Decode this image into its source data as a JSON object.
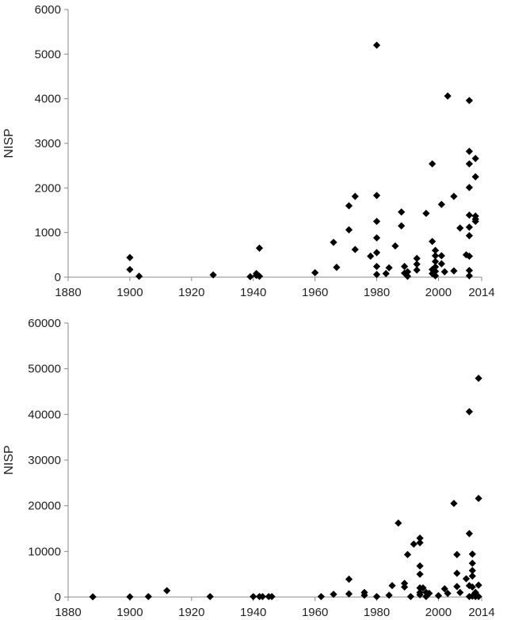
{
  "chart_data": [
    {
      "type": "scatter",
      "title": "",
      "xlabel": "",
      "ylabel": "NISP",
      "xlim": [
        1880,
        2014
      ],
      "ylim": [
        0,
        6000
      ],
      "x_ticks": [
        "1880",
        "1900",
        "1920",
        "1940",
        "1960",
        "1980",
        "2000",
        "2014"
      ],
      "y_ticks": [
        "0",
        "1000",
        "2000",
        "3000",
        "4000",
        "5000",
        "6000"
      ],
      "marker": "diamond",
      "marker_color": "#000000",
      "grid": false,
      "legend": "none",
      "series": [
        {
          "points": [
            [
              1900,
              440
            ],
            [
              1900,
              170
            ],
            [
              1903,
              20
            ],
            [
              1927,
              50
            ],
            [
              1939,
              10
            ],
            [
              1941,
              40
            ],
            [
              1941,
              80
            ],
            [
              1942,
              20
            ],
            [
              1942,
              650
            ],
            [
              1960,
              100
            ],
            [
              1966,
              780
            ],
            [
              1967,
              220
            ],
            [
              1971,
              1600
            ],
            [
              1971,
              1060
            ],
            [
              1973,
              1810
            ],
            [
              1973,
              620
            ],
            [
              1978,
              470
            ],
            [
              1980,
              5200
            ],
            [
              1980,
              1830
            ],
            [
              1980,
              1250
            ],
            [
              1980,
              880
            ],
            [
              1980,
              550
            ],
            [
              1980,
              240
            ],
            [
              1980,
              60
            ],
            [
              1983,
              80
            ],
            [
              1984,
              210
            ],
            [
              1986,
              700
            ],
            [
              1988,
              1460
            ],
            [
              1988,
              1150
            ],
            [
              1989,
              240
            ],
            [
              1989,
              90
            ],
            [
              1990,
              20
            ],
            [
              1990,
              120
            ],
            [
              1993,
              420
            ],
            [
              1993,
              290
            ],
            [
              1993,
              160
            ],
            [
              1996,
              1430
            ],
            [
              1998,
              2540
            ],
            [
              1998,
              800
            ],
            [
              1998,
              170
            ],
            [
              1998,
              80
            ],
            [
              1999,
              600
            ],
            [
              1999,
              480
            ],
            [
              1999,
              350
            ],
            [
              1999,
              230
            ],
            [
              1999,
              130
            ],
            [
              1999,
              30
            ],
            [
              2001,
              1630
            ],
            [
              2001,
              480
            ],
            [
              2001,
              300
            ],
            [
              2002,
              120
            ],
            [
              2003,
              4060
            ],
            [
              2005,
              1810
            ],
            [
              2005,
              140
            ],
            [
              2007,
              1100
            ],
            [
              2009,
              500
            ],
            [
              2010,
              3960
            ],
            [
              2010,
              2820
            ],
            [
              2010,
              2540
            ],
            [
              2010,
              2010
            ],
            [
              2010,
              1390
            ],
            [
              2010,
              1120
            ],
            [
              2010,
              930
            ],
            [
              2010,
              470
            ],
            [
              2010,
              150
            ],
            [
              2010,
              30
            ],
            [
              2012,
              2660
            ],
            [
              2012,
              2250
            ],
            [
              2012,
              1370
            ],
            [
              2012,
              1300
            ],
            [
              2012,
              1250
            ]
          ]
        }
      ]
    },
    {
      "type": "scatter",
      "title": "",
      "xlabel": "",
      "ylabel": "NISP",
      "xlim": [
        1880,
        2014
      ],
      "ylim": [
        0,
        60000
      ],
      "x_ticks": [
        "1880",
        "1900",
        "1920",
        "1940",
        "1960",
        "1980",
        "2000",
        "2014"
      ],
      "y_ticks": [
        "0",
        "10000",
        "20000",
        "30000",
        "40000",
        "50000",
        "60000"
      ],
      "marker": "diamond",
      "marker_color": "#000000",
      "grid": false,
      "legend": "none",
      "series": [
        {
          "points": [
            [
              1888,
              50
            ],
            [
              1900,
              50
            ],
            [
              1906,
              100
            ],
            [
              1912,
              1400
            ],
            [
              1926,
              100
            ],
            [
              1940,
              100
            ],
            [
              1942,
              100
            ],
            [
              1943,
              100
            ],
            [
              1945,
              100
            ],
            [
              1946,
              100
            ],
            [
              1962,
              100
            ],
            [
              1966,
              600
            ],
            [
              1971,
              3900
            ],
            [
              1971,
              700
            ],
            [
              1976,
              1000
            ],
            [
              1976,
              400
            ],
            [
              1980,
              100
            ],
            [
              1984,
              400
            ],
            [
              1985,
              2500
            ],
            [
              1987,
              16200
            ],
            [
              1989,
              3000
            ],
            [
              1989,
              2200
            ],
            [
              1990,
              9300
            ],
            [
              1991,
              100
            ],
            [
              1992,
              11600
            ],
            [
              1994,
              12900
            ],
            [
              1994,
              11900
            ],
            [
              1994,
              6800
            ],
            [
              1994,
              5000
            ],
            [
              1994,
              2000
            ],
            [
              1994,
              1000
            ],
            [
              1994,
              500
            ],
            [
              1995,
              2000
            ],
            [
              1996,
              100
            ],
            [
              1996,
              1000
            ],
            [
              1997,
              800
            ],
            [
              2000,
              300
            ],
            [
              2002,
              1800
            ],
            [
              2003,
              800
            ],
            [
              2005,
              20500
            ],
            [
              2006,
              9300
            ],
            [
              2006,
              5200
            ],
            [
              2006,
              2300
            ],
            [
              2007,
              1000
            ],
            [
              2009,
              4000
            ],
            [
              2010,
              40600
            ],
            [
              2010,
              13900
            ],
            [
              2010,
              2500
            ],
            [
              2010,
              100
            ],
            [
              2011,
              9400
            ],
            [
              2011,
              7400
            ],
            [
              2011,
              5800
            ],
            [
              2011,
              4600
            ],
            [
              2011,
              2200
            ],
            [
              2011,
              200
            ],
            [
              2012,
              1000
            ],
            [
              2012,
              100
            ],
            [
              2013,
              47900
            ],
            [
              2013,
              21600
            ],
            [
              2013,
              2600
            ],
            [
              2013,
              100
            ]
          ]
        }
      ]
    }
  ]
}
